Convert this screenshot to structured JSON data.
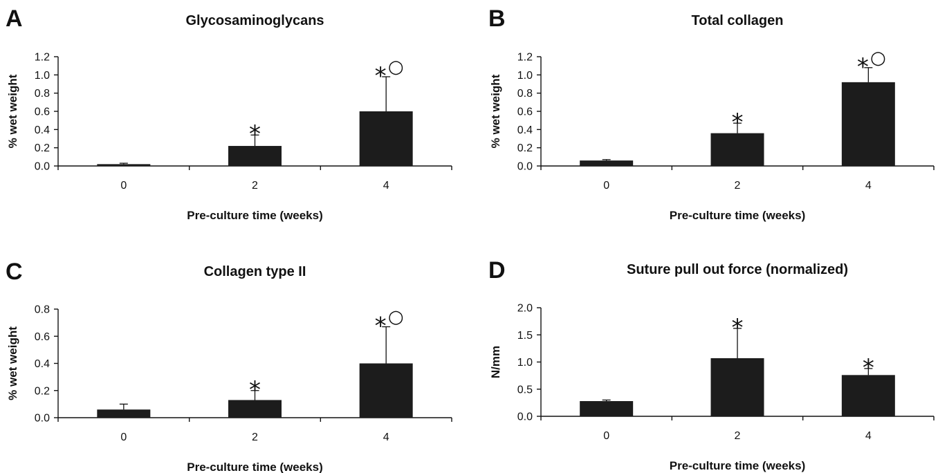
{
  "chart_data": [
    {
      "type": "bar",
      "panel": "A",
      "title": "Glycosaminoglycans",
      "xlabel": "Pre-culture time (weeks)",
      "ylabel": "% wet weight",
      "categories": [
        "0",
        "2",
        "4"
      ],
      "values": [
        0.02,
        0.22,
        0.6
      ],
      "error": [
        0.01,
        0.12,
        0.38
      ],
      "significance": [
        "",
        "*",
        "*○"
      ],
      "ylim": [
        0,
        1.2
      ],
      "yticks": [
        "0.0",
        "0.2",
        "0.4",
        "0.6",
        "0.8",
        "1.0",
        "1.2"
      ],
      "grid": false
    },
    {
      "type": "bar",
      "panel": "B",
      "title": "Total collagen",
      "xlabel": "Pre-culture time (weeks)",
      "ylabel": "% wet weight",
      "categories": [
        "0",
        "2",
        "4"
      ],
      "values": [
        0.06,
        0.36,
        0.92
      ],
      "error": [
        0.01,
        0.11,
        0.16
      ],
      "significance": [
        "",
        "*",
        "*○"
      ],
      "ylim": [
        0,
        1.2
      ],
      "yticks": [
        "0.0",
        "0.2",
        "0.4",
        "0.6",
        "0.8",
        "1.0",
        "1.2"
      ],
      "grid": false
    },
    {
      "type": "bar",
      "panel": "C",
      "title": "Collagen type II",
      "xlabel": "Pre-culture time (weeks)",
      "ylabel": "% wet weight",
      "categories": [
        "0",
        "2",
        "4"
      ],
      "values": [
        0.06,
        0.13,
        0.4
      ],
      "error": [
        0.04,
        0.07,
        0.27
      ],
      "significance": [
        "",
        "*",
        "*○"
      ],
      "ylim": [
        0,
        0.8
      ],
      "yticks": [
        "0.0",
        "0.2",
        "0.4",
        "0.6",
        "0.8"
      ],
      "grid": false
    },
    {
      "type": "bar",
      "panel": "D",
      "title": "Suture pull out force (normalized)",
      "xlabel": "Pre-culture time (weeks)",
      "ylabel": "N/mm",
      "categories": [
        "0",
        "2",
        "4"
      ],
      "values": [
        0.28,
        1.07,
        0.76
      ],
      "error": [
        0.02,
        0.55,
        0.12
      ],
      "significance": [
        "",
        "*",
        "*"
      ],
      "ylim": [
        0,
        2.0
      ],
      "yticks": [
        "0.0",
        "0.5",
        "1.0",
        "1.5",
        "2.0"
      ],
      "grid": false
    }
  ]
}
